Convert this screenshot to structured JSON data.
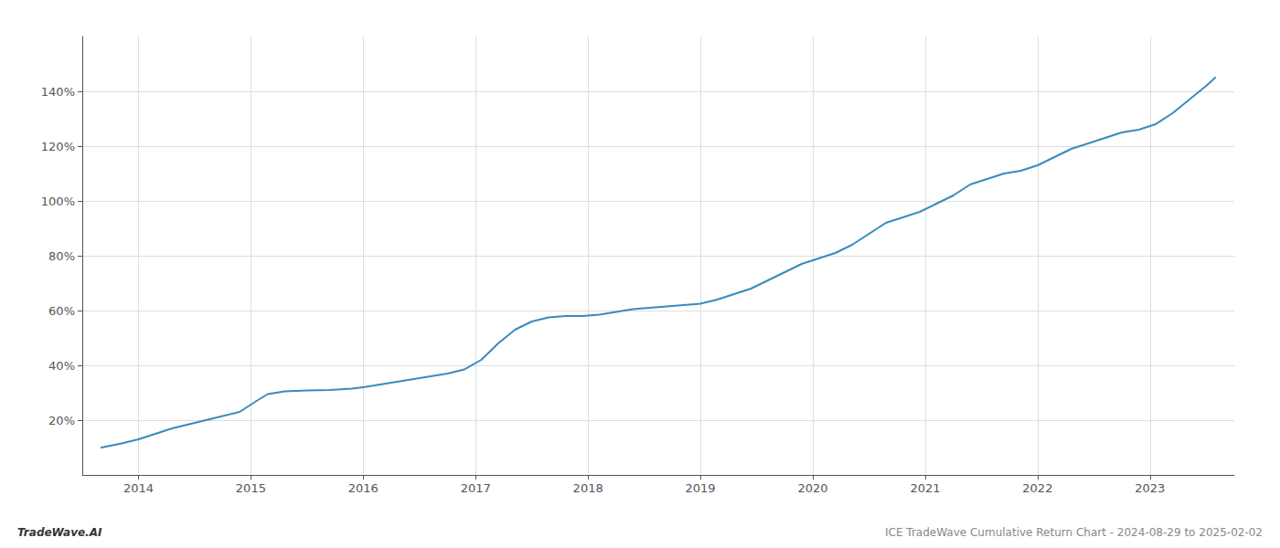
{
  "chart_data": {
    "type": "line",
    "title": "ICE TradeWave Cumulative Return Chart - 2024-08-29 to 2025-02-02",
    "annotations": [
      "TradeWave.AI"
    ],
    "x": [
      2013.67,
      2013.85,
      2014.0,
      2014.15,
      2014.3,
      2014.5,
      2014.7,
      2014.9,
      2015.05,
      2015.15,
      2015.3,
      2015.5,
      2015.7,
      2015.9,
      2016.0,
      2016.15,
      2016.3,
      2016.45,
      2016.6,
      2016.75,
      2016.9,
      2017.05,
      2017.2,
      2017.35,
      2017.5,
      2017.65,
      2017.8,
      2017.95,
      2018.1,
      2018.25,
      2018.4,
      2018.55,
      2018.7,
      2018.85,
      2019.0,
      2019.15,
      2019.3,
      2019.45,
      2019.6,
      2019.75,
      2019.9,
      2020.05,
      2020.2,
      2020.35,
      2020.5,
      2020.65,
      2020.8,
      2020.95,
      2021.1,
      2021.25,
      2021.4,
      2021.55,
      2021.7,
      2021.85,
      2022.0,
      2022.15,
      2022.3,
      2022.45,
      2022.6,
      2022.75,
      2022.9,
      2023.05,
      2023.2,
      2023.35,
      2023.5,
      2023.58
    ],
    "values": [
      10,
      11.5,
      13,
      15,
      17,
      19,
      21,
      23,
      27,
      29.5,
      30.5,
      30.8,
      31,
      31.5,
      32,
      33,
      34,
      35,
      36,
      37,
      38.5,
      42,
      48,
      53,
      56,
      57.5,
      58,
      58,
      58.5,
      59.5,
      60.5,
      61,
      61.5,
      62,
      62.5,
      64,
      66,
      68,
      71,
      74,
      77,
      79,
      81,
      84,
      88,
      92,
      94,
      96,
      99,
      102,
      106,
      108,
      110,
      111,
      113,
      116,
      119,
      121,
      123,
      125,
      126,
      128,
      132,
      137,
      142,
      145
    ],
    "color": "#3a8abf",
    "xlim": [
      2013.5,
      2023.75
    ],
    "xticks": [
      2014,
      2015,
      2016,
      2017,
      2018,
      2019,
      2020,
      2021,
      2022,
      2023
    ],
    "ylim": [
      0,
      160
    ],
    "yticks": [
      {
        "value": 20,
        "label": "20%"
      },
      {
        "value": 40,
        "label": "40%"
      },
      {
        "value": 60,
        "label": "60%"
      },
      {
        "value": 80,
        "label": "80%"
      },
      {
        "value": 100,
        "label": "100%"
      },
      {
        "value": 120,
        "label": "120%"
      },
      {
        "value": 140,
        "label": "140%"
      }
    ],
    "grid": true
  }
}
